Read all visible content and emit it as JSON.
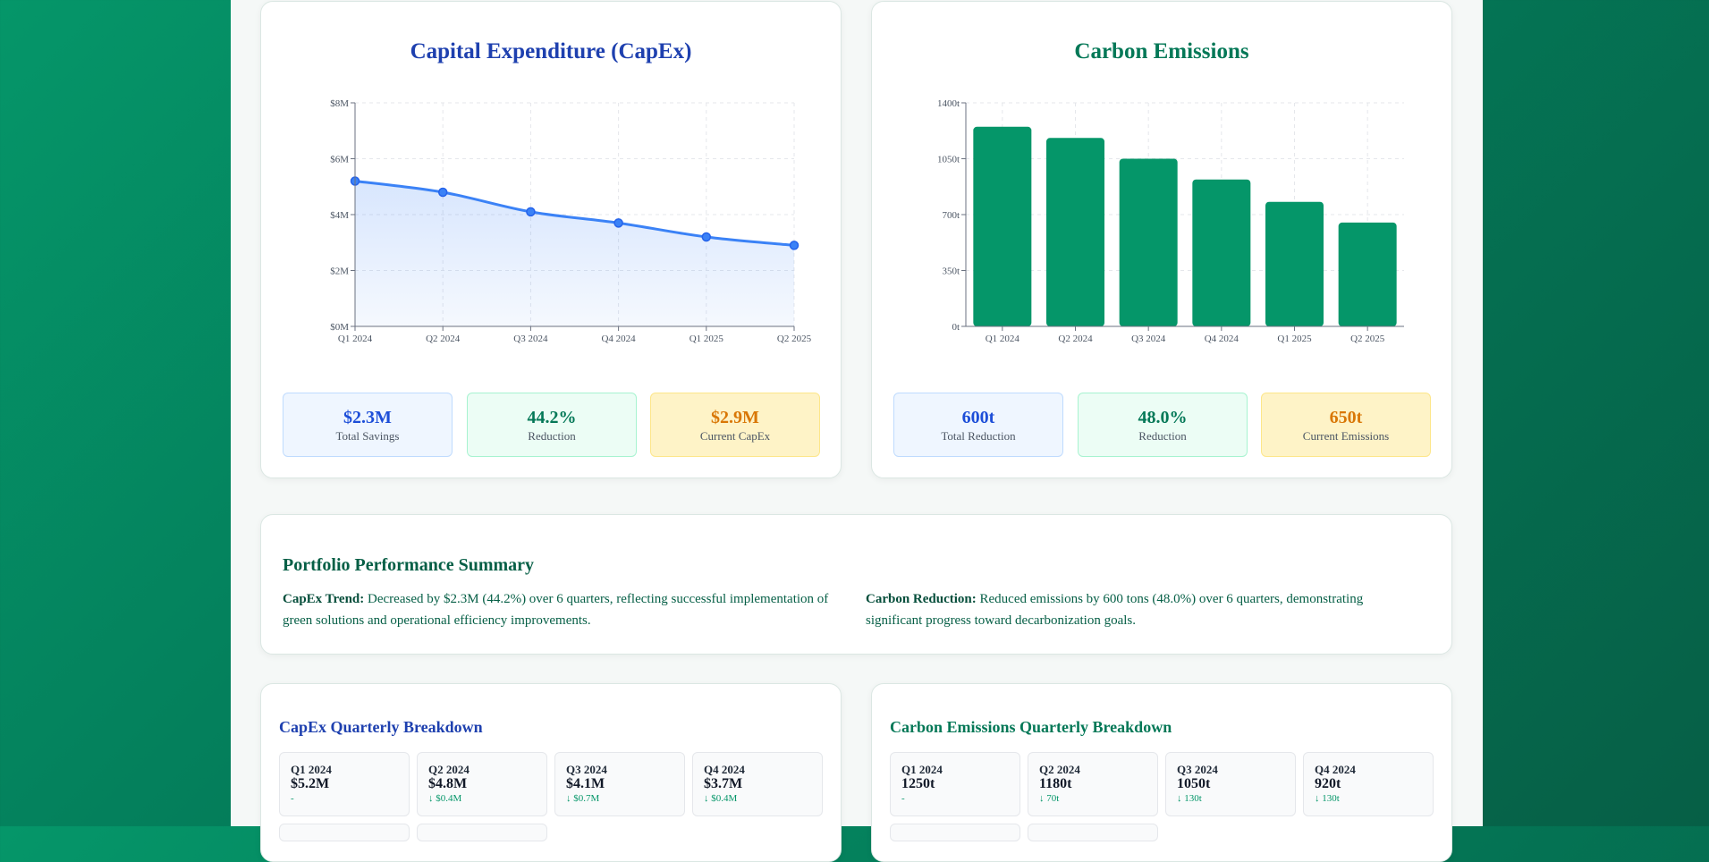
{
  "capex_card": {
    "title": "Capital Expenditure (CapEx)",
    "title_color": "#1e40af",
    "stats": [
      {
        "value": "$2.3M",
        "label": "Total Savings",
        "color": "#1d4ed8"
      },
      {
        "value": "44.2%",
        "label": "Reduction",
        "color": "#047857"
      },
      {
        "value": "$2.9M",
        "label": "Current CapEx",
        "color": "#d97706"
      }
    ]
  },
  "carbon_card": {
    "title": "Carbon Emissions",
    "title_color": "#047857",
    "stats": [
      {
        "value": "600t",
        "label": "Total Reduction",
        "color": "#1d4ed8"
      },
      {
        "value": "48.0%",
        "label": "Reduction",
        "color": "#047857"
      },
      {
        "value": "650t",
        "label": "Current Emissions",
        "color": "#d97706"
      }
    ]
  },
  "chart_data": [
    {
      "type": "line",
      "title": "Capital Expenditure (CapEx)",
      "categories": [
        "Q1 2024",
        "Q2 2024",
        "Q3 2024",
        "Q4 2024",
        "Q1 2025",
        "Q2 2025"
      ],
      "values": [
        5.2,
        4.8,
        4.1,
        3.7,
        3.2,
        2.9
      ],
      "unit": "$M",
      "ylim": [
        0,
        8
      ],
      "yticks": [
        "$0M",
        "$2M",
        "$4M",
        "$6M",
        "$8M"
      ],
      "grid": true,
      "area_fill": true,
      "color": "#3b82f6"
    },
    {
      "type": "bar",
      "title": "Carbon Emissions",
      "categories": [
        "Q1 2024",
        "Q2 2024",
        "Q3 2024",
        "Q4 2024",
        "Q1 2025",
        "Q2 2025"
      ],
      "values": [
        1250,
        1180,
        1050,
        920,
        780,
        650
      ],
      "unit": "t",
      "ylim": [
        0,
        1400
      ],
      "yticks": [
        "0t",
        "350t",
        "700t",
        "1050t",
        "1400t"
      ],
      "grid": true,
      "color": "#059669"
    }
  ],
  "summary": {
    "title": "Portfolio Performance Summary",
    "capex_label": "CapEx Trend:",
    "capex_text": " Decreased by $2.3M (44.2%) over 6 quarters, reflecting successful implementation of green solutions and operational efficiency improvements.",
    "carbon_label": "Carbon Reduction:",
    "carbon_text": " Reduced emissions by 600 tons (48.0%) over 6 quarters, demonstrating significant progress toward decarbonization goals."
  },
  "capex_breakdown": {
    "title": "CapEx Quarterly Breakdown",
    "title_color": "#1e40af",
    "tiles": [
      {
        "quarter": "Q1 2024",
        "value": "$5.2M",
        "delta": "-"
      },
      {
        "quarter": "Q2 2024",
        "value": "$4.8M",
        "delta": "↓ $0.4M"
      },
      {
        "quarter": "Q3 2024",
        "value": "$4.1M",
        "delta": "↓ $0.7M"
      },
      {
        "quarter": "Q4 2024",
        "value": "$3.7M",
        "delta": "↓ $0.4M"
      }
    ]
  },
  "carbon_breakdown": {
    "title": "Carbon Emissions Quarterly Breakdown",
    "title_color": "#047857",
    "tiles": [
      {
        "quarter": "Q1 2024",
        "value": "1250t",
        "delta": "-"
      },
      {
        "quarter": "Q2 2024",
        "value": "1180t",
        "delta": "↓ 70t"
      },
      {
        "quarter": "Q3 2024",
        "value": "1050t",
        "delta": "↓ 130t"
      },
      {
        "quarter": "Q4 2024",
        "value": "920t",
        "delta": "↓ 130t"
      }
    ]
  }
}
